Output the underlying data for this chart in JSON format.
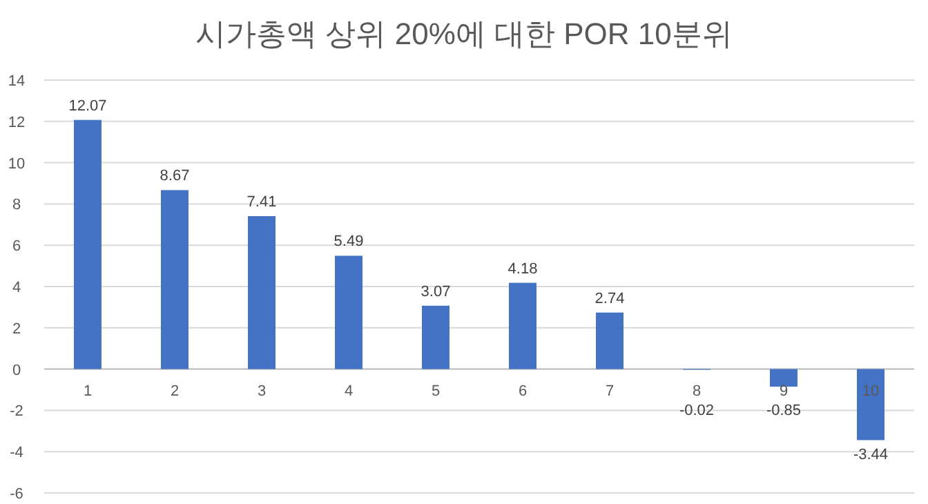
{
  "chart_data": {
    "type": "bar",
    "title": "시가총액 상위 20%에 대한 POR 10분위",
    "categories": [
      "1",
      "2",
      "3",
      "4",
      "5",
      "6",
      "7",
      "8",
      "9",
      "10"
    ],
    "values": [
      12.07,
      8.67,
      7.41,
      5.49,
      3.07,
      4.18,
      2.74,
      -0.02,
      -0.85,
      -3.44
    ],
    "color": "#4472c4",
    "ylim": [
      -6,
      14
    ],
    "yticks": [
      -6,
      -4,
      -2,
      0,
      2,
      4,
      6,
      8,
      10,
      12,
      14
    ],
    "grid": "y",
    "data_labels": true
  }
}
